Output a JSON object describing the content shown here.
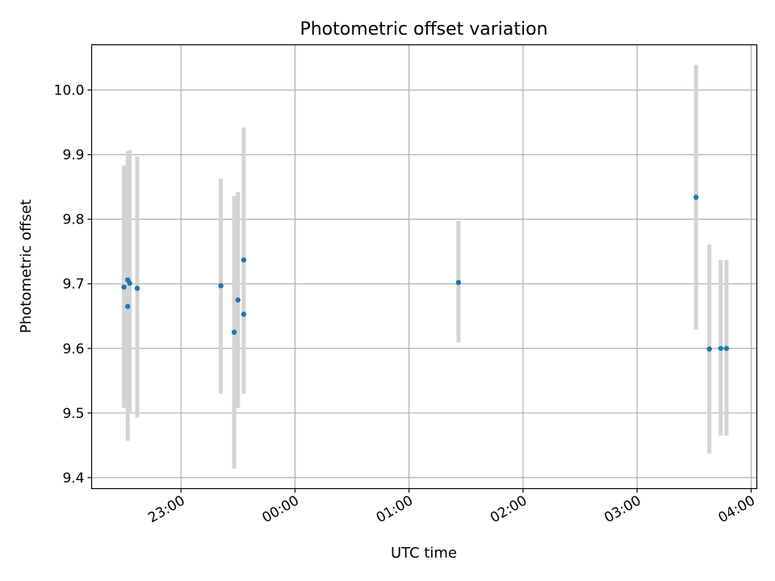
{
  "chart_data": {
    "type": "scatter",
    "title": "Photometric offset variation",
    "xlabel": "UTC time",
    "ylabel": "Photometric offset",
    "x_ticks": [
      "23:00",
      "00:00",
      "01:00",
      "02:00",
      "03:00",
      "04:00"
    ],
    "y_ticks": [
      "9.4",
      "9.5",
      "9.6",
      "9.7",
      "9.8",
      "9.9",
      "10.0"
    ],
    "xlim": [
      "22:13",
      "04:03"
    ],
    "ylim": [
      9.383,
      10.07
    ],
    "grid": true,
    "marker_color": "#1f77b4",
    "errorbar_color": "#d3d3d3",
    "points": [
      {
        "time": "22:30",
        "offset": 9.695,
        "err_low": 9.508,
        "err_high": 9.883
      },
      {
        "time": "22:32",
        "offset": 9.665,
        "err_low": 9.457,
        "err_high": 9.905
      },
      {
        "time": "22:32",
        "offset": 9.706,
        "err_low": 9.507,
        "err_high": 9.905
      },
      {
        "time": "22:33",
        "offset": 9.701,
        "err_low": 9.499,
        "err_high": 9.907
      },
      {
        "time": "22:37",
        "offset": 9.693,
        "err_low": 9.493,
        "err_high": 9.897
      },
      {
        "time": "23:21",
        "offset": 9.697,
        "err_low": 9.53,
        "err_high": 9.863
      },
      {
        "time": "23:28",
        "offset": 9.625,
        "err_low": 9.414,
        "err_high": 9.836
      },
      {
        "time": "23:30",
        "offset": 9.675,
        "err_low": 9.508,
        "err_high": 9.842
      },
      {
        "time": "23:33",
        "offset": 9.737,
        "err_low": 9.532,
        "err_high": 9.942
      },
      {
        "time": "23:33",
        "offset": 9.653,
        "err_low": 9.53,
        "err_high": 9.776
      },
      {
        "time": "01:26",
        "offset": 9.702,
        "err_low": 9.609,
        "err_high": 9.797
      },
      {
        "time": "03:31",
        "offset": 9.834,
        "err_low": 9.629,
        "err_high": 10.039
      },
      {
        "time": "03:38",
        "offset": 9.599,
        "err_low": 9.437,
        "err_high": 9.761
      },
      {
        "time": "03:44",
        "offset": 9.6,
        "err_low": 9.465,
        "err_high": 9.737
      },
      {
        "time": "03:47",
        "offset": 9.6,
        "err_low": 9.465,
        "err_high": 9.737
      }
    ]
  }
}
